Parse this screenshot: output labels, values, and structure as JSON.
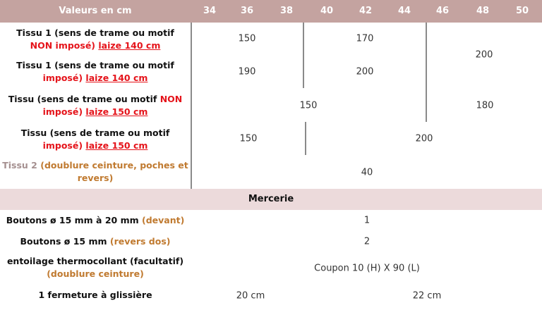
{
  "header": {
    "label": "Valeurs en cm",
    "sizes": [
      "34",
      "36",
      "38",
      "40",
      "42",
      "44",
      "46",
      "48",
      "50"
    ],
    "background": "#c4a3a0"
  },
  "fabric_rows": [
    {
      "label": [
        {
          "text": "Tissu 1 (sens de trame ou motif ",
          "style": "black"
        },
        {
          "text": "NON",
          "style": "red"
        },
        {
          "text": " imposé)",
          "style": "red"
        },
        {
          "text": " ",
          "style": "black"
        },
        {
          "text": "laize 140 cm",
          "style": "red-underline"
        }
      ]
    },
    {
      "label": [
        {
          "text": "Tissu 1 (sens de trame ou motif ",
          "style": "black"
        },
        {
          "text": "imposé)",
          "style": "red"
        },
        {
          "text": " ",
          "style": "black"
        },
        {
          "text": "laize 140 cm",
          "style": "red-underline"
        }
      ]
    },
    {
      "label": [
        {
          "text": "Tissu (sens de trame ou motif ",
          "style": "black"
        },
        {
          "text": "NON",
          "style": "red"
        },
        {
          "text": " imposé) ",
          "style": "red"
        },
        {
          "text": " ",
          "style": "black"
        },
        {
          "text": "laize 150 cm",
          "style": "red-underline"
        }
      ]
    },
    {
      "label": [
        {
          "text": "Tissu (sens de trame ou motif ",
          "style": "black"
        },
        {
          "text": "imposé) ",
          "style": "red"
        },
        {
          "text": " ",
          "style": "black"
        },
        {
          "text": "laize 150 cm",
          "style": "red-underline"
        }
      ]
    },
    {
      "label": [
        {
          "text": "Tissu 2 ",
          "style": "grey"
        },
        {
          "text": "(doublure ceinture, poches et revers)",
          "style": "orange"
        }
      ]
    }
  ],
  "fabric_values": {
    "row1_36_38": "150",
    "row1_40_44": "170",
    "rows12_46_50": "200",
    "row2_36_38": "190",
    "row2_40_44": "200",
    "row3_36_44": "150",
    "row3_46_50": "180",
    "row4_36_38": "150",
    "row4_40_50": "200",
    "row5_all": "40"
  },
  "mercerie": {
    "title": "Mercerie",
    "rows": [
      {
        "label": [
          {
            "text": "Boutons ø 15 mm à 20 mm ",
            "style": "black"
          },
          {
            "text": "(devant)",
            "style": "orange"
          }
        ],
        "values": [
          "1"
        ]
      },
      {
        "label": [
          {
            "text": "Boutons ø 15 mm ",
            "style": "black"
          },
          {
            "text": "(revers dos)",
            "style": "orange"
          }
        ],
        "values": [
          "2"
        ]
      },
      {
        "label": [
          {
            "text": "entoilage thermocollant (facultatif) ",
            "style": "black"
          },
          {
            "text": "(doublure ceinture)",
            "style": "orange"
          }
        ],
        "values": [
          "Coupon 10 (H) X  90 (L)"
        ]
      },
      {
        "label": [
          {
            "text": "1 fermeture à glissière",
            "style": "black"
          }
        ],
        "values": [
          "20 cm",
          "22 cm"
        ]
      }
    ]
  },
  "colors": {
    "red": "#e5141b",
    "orange": "#c07a30",
    "mercerie_band": "#ecdadb"
  }
}
